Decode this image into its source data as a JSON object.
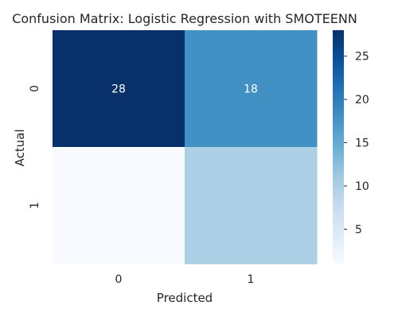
{
  "chart_data": {
    "type": "heatmap",
    "title": "Confusion Matrix: Logistic Regression with SMOTEENN",
    "xlabel": "Predicted",
    "ylabel": "Actual",
    "x_categories": [
      "0",
      "1"
    ],
    "y_categories": [
      "0",
      "1"
    ],
    "values": [
      [
        28,
        18
      ],
      [
        1,
        10
      ]
    ],
    "cell_labels": [
      [
        "28",
        "18"
      ],
      [
        "",
        ""
      ]
    ],
    "colormap": "Blues",
    "color_range": [
      1,
      28
    ],
    "colorbar_ticks": [
      5,
      10,
      15,
      20,
      25
    ],
    "colorbar_tick_labels": [
      "5",
      "10",
      "15",
      "20",
      "25"
    ],
    "annotation_colors": {
      "light": "#ffffff",
      "dark": "#262626"
    }
  }
}
